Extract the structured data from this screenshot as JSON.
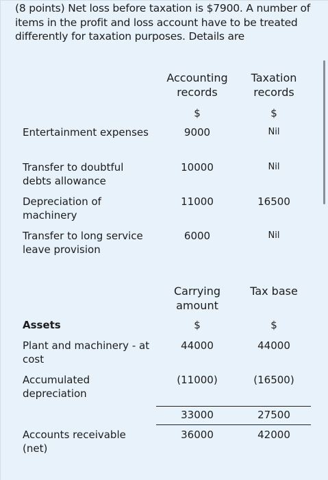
{
  "intro": "(8 points) Net loss before taxation is $7900. A number of items in the profit and loss account have to be treated differently for taxation purposes. Details are",
  "table1": {
    "col1_header": "Accounting records",
    "col2_header": "Taxation records",
    "unit1": "$",
    "unit2": "$",
    "rows": [
      {
        "label": "Entertainment expenses",
        "v1": "9000",
        "v2": "Nil"
      },
      {
        "label": "Transfer to doubtful debts allowance",
        "v1": "10000",
        "v2": "Nil"
      },
      {
        "label": "Depreciation of machinery",
        "v1": "11000",
        "v2": "16500"
      },
      {
        "label": "Transfer to long service leave provision",
        "v1": "6000",
        "v2": "Nil"
      }
    ]
  },
  "table2": {
    "col1_header": "Carrying amount",
    "col2_header": "Tax base",
    "section_label": "Assets",
    "unit1": "$",
    "unit2": "$",
    "rows": [
      {
        "label": "Plant and machinery - at cost",
        "v1": "44000",
        "v2": "44000"
      },
      {
        "label": "Accumulated depreciation",
        "v1": "(11000)",
        "v2": "(16500)"
      },
      {
        "label": "",
        "v1": "33000",
        "v2": "27500"
      },
      {
        "label": "Accounts receivable (net)",
        "v1": "36000",
        "v2": "42000"
      }
    ]
  }
}
